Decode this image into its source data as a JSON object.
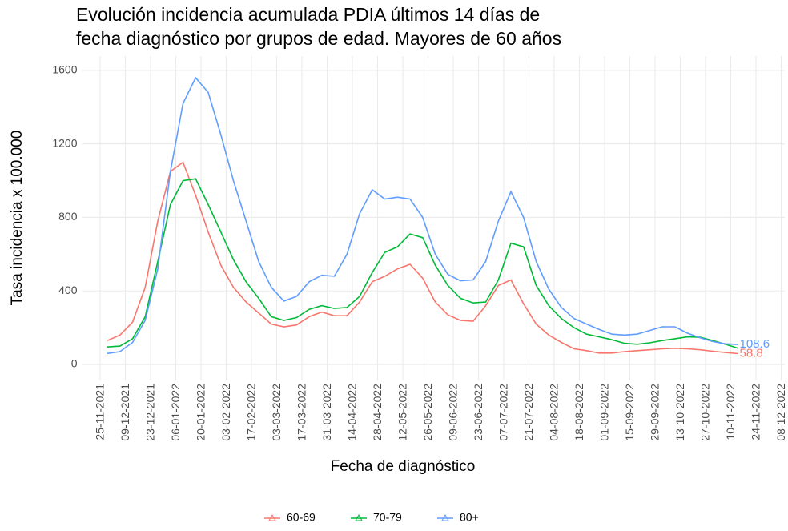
{
  "chart_data": {
    "type": "line",
    "title": [
      "Evolución incidencia acumulada PDIA últimos 14 días de",
      " fecha diagnóstico por grupos de edad. Mayores de 60 años"
    ],
    "x_label": "Fecha de diagnóstico",
    "y_label": "Tasa incidencia x 100.000",
    "x": [
      "2021-11-29",
      "2021-12-06",
      "2021-12-13",
      "2021-12-20",
      "2021-12-27",
      "2022-01-03",
      "2022-01-10",
      "2022-01-17",
      "2022-01-24",
      "2022-01-31",
      "2022-02-07",
      "2022-02-14",
      "2022-02-21",
      "2022-02-28",
      "2022-03-07",
      "2022-03-14",
      "2022-03-21",
      "2022-03-28",
      "2022-04-04",
      "2022-04-11",
      "2022-04-18",
      "2022-04-25",
      "2022-05-02",
      "2022-05-09",
      "2022-05-16",
      "2022-05-23",
      "2022-05-30",
      "2022-06-06",
      "2022-06-13",
      "2022-06-20",
      "2022-06-27",
      "2022-07-04",
      "2022-07-11",
      "2022-07-18",
      "2022-07-25",
      "2022-08-01",
      "2022-08-08",
      "2022-08-15",
      "2022-08-22",
      "2022-08-29",
      "2022-09-05",
      "2022-09-12",
      "2022-09-19",
      "2022-09-26",
      "2022-10-03",
      "2022-10-10",
      "2022-10-17",
      "2022-10-24",
      "2022-10-31",
      "2022-11-07",
      "2022-11-14"
    ],
    "series": [
      {
        "name": "60-69",
        "color": "#F8766D",
        "end_label": "58.8",
        "values": [
          130,
          160,
          230,
          420,
          780,
          1050,
          1100,
          920,
          720,
          540,
          420,
          340,
          280,
          220,
          205,
          215,
          260,
          285,
          265,
          265,
          340,
          450,
          480,
          520,
          545,
          470,
          340,
          270,
          240,
          235,
          320,
          430,
          460,
          330,
          220,
          160,
          120,
          85,
          75,
          62,
          62,
          70,
          75,
          80,
          85,
          88,
          85,
          80,
          72,
          65,
          58.8
        ]
      },
      {
        "name": "70-79",
        "color": "#00BA38",
        "values": [
          95,
          100,
          140,
          260,
          560,
          870,
          1000,
          1010,
          870,
          720,
          570,
          450,
          360,
          260,
          240,
          255,
          300,
          320,
          305,
          310,
          370,
          500,
          610,
          640,
          710,
          690,
          540,
          430,
          360,
          335,
          340,
          460,
          660,
          640,
          430,
          320,
          250,
          200,
          165,
          150,
          135,
          115,
          110,
          118,
          130,
          140,
          150,
          148,
          130,
          110,
          88
        ]
      },
      {
        "name": "80+",
        "color": "#619CFF",
        "end_label": "108.6",
        "values": [
          60,
          70,
          120,
          240,
          520,
          1050,
          1420,
          1560,
          1480,
          1250,
          1000,
          780,
          560,
          420,
          345,
          370,
          450,
          485,
          480,
          600,
          820,
          950,
          900,
          910,
          900,
          800,
          600,
          490,
          455,
          460,
          560,
          780,
          940,
          800,
          560,
          410,
          310,
          250,
          220,
          190,
          165,
          160,
          165,
          185,
          205,
          205,
          170,
          145,
          125,
          112,
          108.6
        ]
      }
    ],
    "xlim": [
      "2021-11-15",
      "2022-12-10"
    ],
    "xticks": [
      {
        "value": "2021-11-25",
        "label": "25-11-2021"
      },
      {
        "value": "2021-12-09",
        "label": "09-12-2021"
      },
      {
        "value": "2021-12-23",
        "label": "23-12-2021"
      },
      {
        "value": "2022-01-06",
        "label": "06-01-2022"
      },
      {
        "value": "2022-01-20",
        "label": "20-01-2022"
      },
      {
        "value": "2022-02-03",
        "label": "03-02-2022"
      },
      {
        "value": "2022-02-17",
        "label": "17-02-2022"
      },
      {
        "value": "2022-03-03",
        "label": "03-03-2022"
      },
      {
        "value": "2022-03-17",
        "label": "17-03-2022"
      },
      {
        "value": "2022-03-31",
        "label": "31-03-2022"
      },
      {
        "value": "2022-04-14",
        "label": "14-04-2022"
      },
      {
        "value": "2022-04-28",
        "label": "28-04-2022"
      },
      {
        "value": "2022-05-12",
        "label": "12-05-2022"
      },
      {
        "value": "2022-05-26",
        "label": "26-05-2022"
      },
      {
        "value": "2022-06-09",
        "label": "09-06-2022"
      },
      {
        "value": "2022-06-23",
        "label": "23-06-2022"
      },
      {
        "value": "2022-07-07",
        "label": "07-07-2022"
      },
      {
        "value": "2022-07-21",
        "label": "21-07-2022"
      },
      {
        "value": "2022-08-04",
        "label": "04-08-2022"
      },
      {
        "value": "2022-08-18",
        "label": "18-08-2022"
      },
      {
        "value": "2022-09-01",
        "label": "01-09-2022"
      },
      {
        "value": "2022-09-15",
        "label": "15-09-2022"
      },
      {
        "value": "2022-09-29",
        "label": "29-09-2022"
      },
      {
        "value": "2022-10-13",
        "label": "13-10-2022"
      },
      {
        "value": "2022-10-27",
        "label": "27-10-2022"
      },
      {
        "value": "2022-11-10",
        "label": "10-11-2022"
      },
      {
        "value": "2022-11-24",
        "label": "24-11-2022"
      },
      {
        "value": "2022-12-08",
        "label": "08-12-2022"
      }
    ],
    "ylim": [
      -87,
      1678
    ],
    "yticks": [
      0,
      400,
      800,
      1200,
      1600
    ],
    "grid": true,
    "legend": "bottom"
  }
}
